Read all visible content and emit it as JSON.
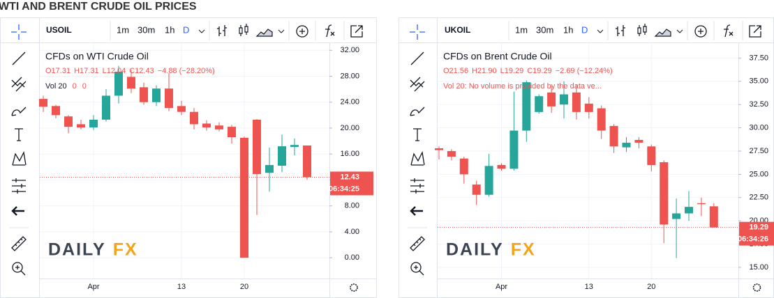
{
  "title": "WTI AND BRENT CRUDE OIL PRICES",
  "chart_data": [
    {
      "type": "candlestick",
      "symbol": "USOIL",
      "intervals": [
        "1m",
        "30m",
        "1h",
        "D"
      ],
      "instrument": "CFDs on WTI Crude Oil",
      "ohlc_legend": [
        "O17.31",
        "H17.31",
        "L12.04",
        "C12.43",
        "−4.88 (−28.20%)"
      ],
      "volume_legend": [
        "Vol 20",
        "0",
        "0"
      ],
      "categories": [
        null,
        null,
        null,
        null,
        "Apr",
        null,
        null,
        null,
        null,
        null,
        null,
        "13",
        null,
        null,
        null,
        null,
        "20",
        null,
        null,
        null,
        null,
        null
      ],
      "open": [
        24.5,
        23.4,
        21.8,
        20.6,
        20.1,
        21.3,
        25.0,
        27.9,
        26.3,
        24.0,
        26.1,
        23.4,
        22.5,
        20.7,
        20.4,
        20.2,
        18.5,
        21.3,
        13.1,
        14.2,
        17.1,
        17.31
      ],
      "high": [
        25.0,
        23.6,
        22.0,
        21.3,
        22.0,
        26.0,
        29.6,
        29.0,
        27.0,
        26.6,
        28.5,
        24.2,
        23.1,
        21.2,
        20.9,
        20.5,
        18.7,
        21.4,
        17.0,
        19.0,
        18.4,
        17.31
      ],
      "low": [
        22.5,
        21.5,
        19.2,
        19.8,
        19.7,
        21.0,
        23.8,
        25.4,
        23.6,
        23.4,
        22.6,
        22.0,
        19.8,
        19.6,
        19.5,
        17.6,
        0,
        6.6,
        10.2,
        13.2,
        15.8,
        12.04
      ],
      "close": [
        23.3,
        22.0,
        20.2,
        20.1,
        21.3,
        25.0,
        28.7,
        26.1,
        24.0,
        26.1,
        23.1,
        22.5,
        20.6,
        20.1,
        19.8,
        18.6,
        0,
        12.9,
        14.3,
        17.2,
        17.4,
        12.43
      ],
      "up_color": "#26a69a",
      "down_color": "#ef5350",
      "grid": true,
      "ylim": [
        -3.2,
        33.1
      ],
      "yticks": [
        {
          "value": 0,
          "label": "0.00"
        },
        {
          "value": 4,
          "label": "4.00"
        },
        {
          "value": 8,
          "label": "8.00"
        },
        {
          "value": 12,
          "label": "12.00"
        },
        {
          "value": 16,
          "label": "16.00"
        },
        {
          "value": 20,
          "label": "20.00"
        },
        {
          "value": 24,
          "label": "24.00"
        },
        {
          "value": 28,
          "label": "28.00"
        },
        {
          "value": 32,
          "label": "32.00"
        }
      ],
      "last_price": {
        "value": 12.43,
        "label": "12.43"
      },
      "countdown": "06:34:25",
      "watermark": [
        "DAILY",
        "FX"
      ]
    },
    {
      "type": "candlestick",
      "symbol": "UKOIL",
      "intervals": [
        "1m",
        "30m",
        "1h",
        "D"
      ],
      "instrument": "CFDs on Brent Crude Oil",
      "ohlc_legend": [
        "O21.56",
        "H21.90",
        "L19.29",
        "C19.29",
        "−2.69 (−12.24%)"
      ],
      "volume_legend": [
        "Vol 20: No volume is provided by the data ve..."
      ],
      "categories": [
        null,
        null,
        null,
        null,
        null,
        "Apr",
        null,
        null,
        null,
        null,
        null,
        null,
        "13",
        null,
        null,
        null,
        null,
        "20",
        null,
        null,
        null,
        null,
        null
      ],
      "open": [
        27.8,
        27.5,
        26.7,
        23.9,
        22.8,
        26.0,
        25.6,
        29.7,
        31.7,
        33.8,
        32.5,
        33.8,
        32.6,
        32.1,
        30.2,
        27.9,
        28.7,
        28.0,
        26.3,
        20.2,
        20.8,
        21.9,
        21.56
      ],
      "high": [
        28.0,
        27.7,
        26.9,
        24.3,
        27.2,
        26.2,
        33.9,
        35.1,
        33.6,
        34.5,
        35.0,
        34.6,
        33.3,
        32.4,
        30.4,
        29.0,
        29.0,
        28.2,
        26.5,
        22.4,
        23.2,
        22.5,
        21.9
      ],
      "low": [
        26.6,
        26.5,
        24.0,
        21.7,
        22.6,
        25.4,
        25.4,
        28.5,
        31.5,
        31.6,
        31.0,
        30.9,
        31.0,
        28.8,
        27.3,
        27.4,
        27.8,
        25.3,
        17.6,
        16.0,
        20.0,
        20.5,
        19.29
      ],
      "close": [
        27.6,
        26.9,
        25.0,
        22.8,
        25.9,
        25.6,
        29.7,
        34.9,
        33.4,
        32.3,
        33.6,
        31.7,
        31.7,
        29.7,
        28.0,
        28.4,
        28.4,
        26.0,
        19.6,
        20.8,
        21.5,
        21.8,
        19.29
      ],
      "up_color": "#26a69a",
      "down_color": "#ef5350",
      "grid": true,
      "ylim": [
        13.8,
        39.1
      ],
      "yticks": [
        {
          "value": 15,
          "label": "15.00"
        },
        {
          "value": 17.5,
          "label": "17.50"
        },
        {
          "value": 20,
          "label": "20.00"
        },
        {
          "value": 22.5,
          "label": "22.50"
        },
        {
          "value": 25,
          "label": "25.00"
        },
        {
          "value": 27.5,
          "label": "27.50"
        },
        {
          "value": 30,
          "label": "30.00"
        },
        {
          "value": 32.5,
          "label": "32.50"
        },
        {
          "value": 35,
          "label": "35.00"
        },
        {
          "value": 37.5,
          "label": "37.50"
        }
      ],
      "last_price": {
        "value": 19.29,
        "label": "19.29"
      },
      "countdown": "06:34:26",
      "watermark": [
        "DAILY",
        "FX"
      ]
    }
  ]
}
